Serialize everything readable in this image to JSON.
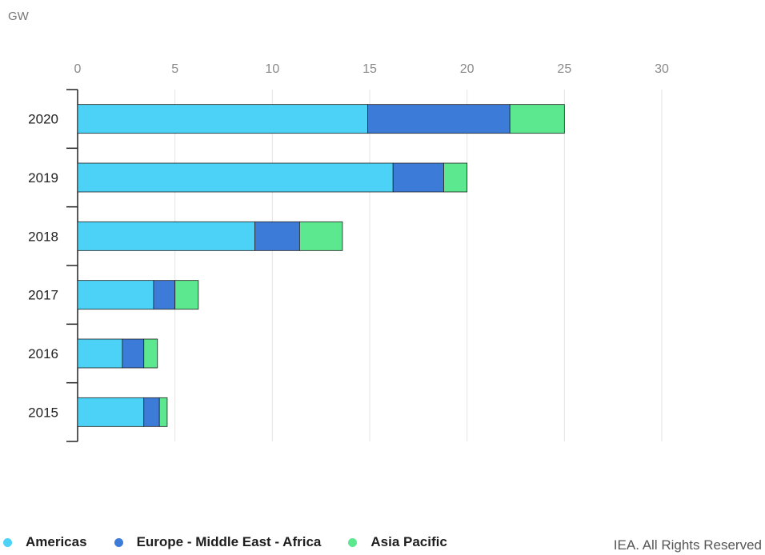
{
  "chart_data": {
    "type": "bar",
    "orientation": "horizontal",
    "stacked": true,
    "unit_label": "GW",
    "categories": [
      "2020",
      "2019",
      "2018",
      "2017",
      "2016",
      "2015"
    ],
    "xlim": [
      0,
      30
    ],
    "xticks": [
      "0",
      "5",
      "10",
      "15",
      "20",
      "25",
      "30"
    ],
    "series": [
      {
        "name": "Americas",
        "color": "#4dd2f7",
        "values": [
          14.9,
          16.2,
          9.1,
          3.9,
          2.3,
          3.4
        ]
      },
      {
        "name": "Europe - Middle East - Africa",
        "color": "#3d7bd9",
        "values": [
          7.3,
          2.6,
          2.3,
          1.1,
          1.1,
          0.8
        ]
      },
      {
        "name": "Asia Pacific",
        "color": "#5ce88e",
        "values": [
          2.8,
          1.2,
          2.2,
          1.2,
          0.7,
          0.4
        ]
      }
    ],
    "grid": true,
    "legend_position": "bottom-left"
  },
  "credit": "IEA. All Rights Reserved"
}
